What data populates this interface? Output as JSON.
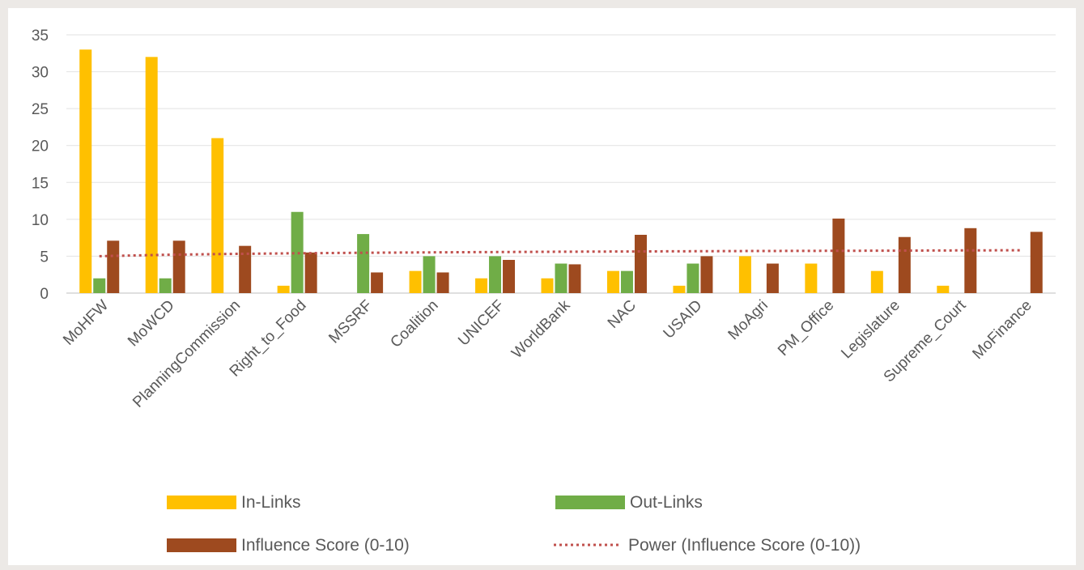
{
  "chart_data": {
    "type": "bar",
    "categories": [
      "MoHFW",
      "MoWCD",
      "PlanningCommission",
      "Right_to_Food",
      "MSSRF",
      "Coalition",
      "UNICEF",
      "WorldBank",
      "NAC",
      "USAID",
      "MoAgri",
      "PM_Office",
      "Legislature",
      "Supreme_Court",
      "MoFinance"
    ],
    "series": [
      {
        "name": "In-Links",
        "color": "#ffc000",
        "values": [
          33,
          32,
          21,
          1,
          0,
          3,
          2,
          2,
          3,
          1,
          5,
          4,
          3,
          1,
          0
        ]
      },
      {
        "name": "Out-Links",
        "color": "#70ad47",
        "values": [
          2,
          2,
          0,
          11,
          8,
          5,
          5,
          4,
          3,
          4,
          0,
          0,
          0,
          0,
          0
        ]
      },
      {
        "name": "Influence Score (0-10)",
        "color": "#9e4a1f",
        "values": [
          7.1,
          7.1,
          6.4,
          5.5,
          2.8,
          2.8,
          4.5,
          3.9,
          7.9,
          5.0,
          4.0,
          10.1,
          7.6,
          8.8,
          8.3
        ]
      }
    ],
    "trendline": {
      "name": "Power (Influence Score (0-10))",
      "type": "power",
      "color": "#c0504d",
      "start": 5.0,
      "end": 5.8
    },
    "yticks": [
      "0",
      "5",
      "10",
      "15",
      "20",
      "25",
      "30",
      "35"
    ],
    "ylim": [
      0,
      35
    ],
    "grid": true,
    "legend_position": "bottom"
  }
}
